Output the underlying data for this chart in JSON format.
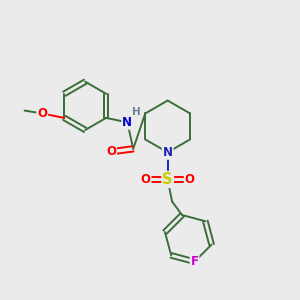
{
  "background_color": "#ebebeb",
  "bond_color": "#3a6e3a",
  "atom_colors": {
    "O": "#ff0000",
    "N_amide": "#0000cc",
    "N_pip": "#2222bb",
    "S": "#cccc00",
    "F": "#cc00cc",
    "H": "#708090",
    "C": "#3a6e3a"
  },
  "lw": 1.4,
  "font_size": 8.5
}
